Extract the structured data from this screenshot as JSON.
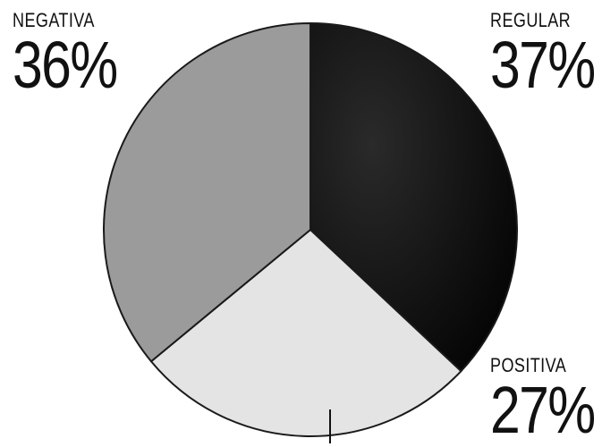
{
  "chart_data": {
    "type": "pie",
    "title": "",
    "categories": [
      "REGULAR",
      "POSITIVA",
      "NEGATIVA"
    ],
    "values": [
      37,
      27,
      36
    ],
    "value_labels": [
      "37%",
      "27%",
      "36%"
    ],
    "colors": [
      "#0d0d0d",
      "#e4e4e4",
      "#9b9b9b"
    ],
    "start_angle_deg": 0,
    "direction": "clockwise",
    "legend": "none"
  }
}
